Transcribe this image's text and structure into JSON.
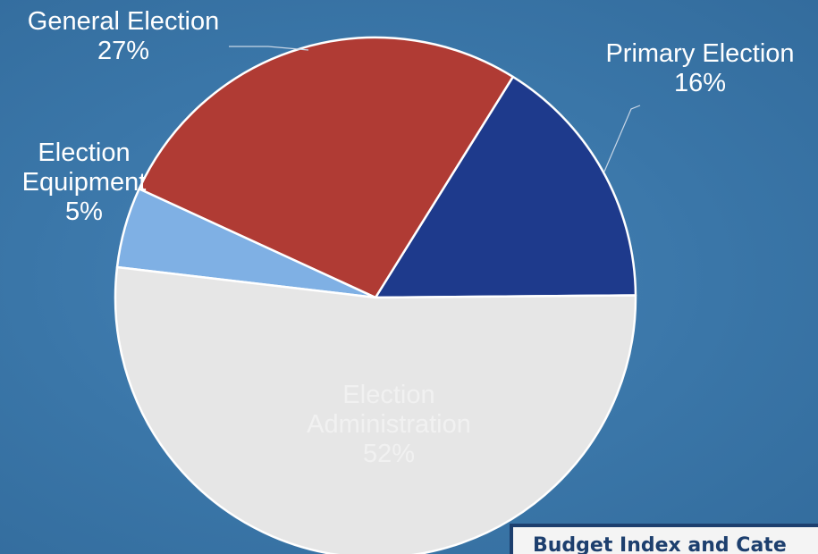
{
  "chart_data": {
    "type": "pie",
    "title": "",
    "slices": [
      {
        "name": "Primary Election",
        "pct_label": "16%",
        "value": 16,
        "color": "#1e3a8c"
      },
      {
        "name": "General Election",
        "pct_label": "27%",
        "value": 27,
        "color": "#b03b34"
      },
      {
        "name": "Election Equipment",
        "name_lines": [
          "Election",
          "Equipment"
        ],
        "pct_label": "5%",
        "value": 5,
        "color": "#7fb0e4"
      },
      {
        "name": "Election Administration",
        "name_lines": [
          "Election",
          "Administration"
        ],
        "pct_label": "52%",
        "value": 52,
        "color": "#e6e6e6"
      }
    ],
    "legend": "none"
  },
  "footer": {
    "label": "Budget Index and Cate"
  },
  "colors": {
    "background": "#3a76a8",
    "footer_border": "#1d3f6e"
  }
}
